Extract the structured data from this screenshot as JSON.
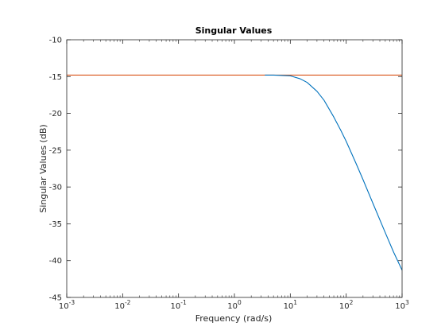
{
  "chart_data": {
    "type": "line",
    "title": "Singular Values",
    "xlabel": "Frequency (rad/s)",
    "ylabel": "Singular Values (dB)",
    "x_scale": "log",
    "xlim": [
      0.001,
      1000
    ],
    "ylim": [
      -45,
      -10
    ],
    "grid": false,
    "x_ticks": [
      {
        "value": 0.001,
        "base": "10",
        "exp": "-3"
      },
      {
        "value": 0.01,
        "base": "10",
        "exp": "-2"
      },
      {
        "value": 0.1,
        "base": "10",
        "exp": "-1"
      },
      {
        "value": 1,
        "base": "10",
        "exp": "0"
      },
      {
        "value": 10,
        "base": "10",
        "exp": "1"
      },
      {
        "value": 100,
        "base": "10",
        "exp": "2"
      },
      {
        "value": 1000,
        "base": "10",
        "exp": "3"
      }
    ],
    "y_ticks": [
      {
        "value": -10,
        "label": "-10"
      },
      {
        "value": -15,
        "label": "-15"
      },
      {
        "value": -20,
        "label": "-20"
      },
      {
        "value": -25,
        "label": "-25"
      },
      {
        "value": -30,
        "label": "-30"
      },
      {
        "value": -35,
        "label": "-35"
      },
      {
        "value": -40,
        "label": "-40"
      },
      {
        "value": -45,
        "label": "-45"
      }
    ],
    "series": [
      {
        "color": "#D95319",
        "x": [
          0.001,
          0.01,
          0.1,
          1,
          10,
          100,
          1000
        ],
        "y": [
          -14.8,
          -14.8,
          -14.8,
          -14.8,
          -14.8,
          -14.8,
          -14.8
        ]
      },
      {
        "color": "#0072BD",
        "x": [
          3.5,
          5,
          10,
          15,
          20,
          30,
          40,
          60,
          80,
          100,
          150,
          200,
          300,
          500,
          700,
          1000
        ],
        "y": [
          -14.8,
          -14.8,
          -14.9,
          -15.3,
          -15.8,
          -17.0,
          -18.2,
          -20.5,
          -22.3,
          -23.8,
          -26.8,
          -29.0,
          -32.2,
          -36.2,
          -38.8,
          -41.3
        ]
      }
    ]
  },
  "colors": {
    "axes": "#262626",
    "background": "#ffffff"
  }
}
